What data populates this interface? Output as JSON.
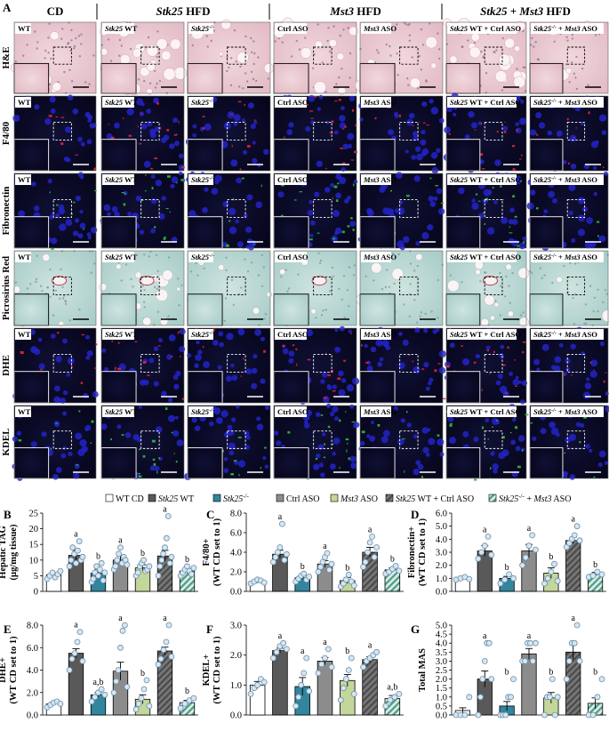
{
  "panel_letters": [
    "A",
    "B",
    "C",
    "D",
    "E",
    "F",
    "G"
  ],
  "group_headers": [
    {
      "parts": [
        {
          "t": "CD",
          "i": false
        }
      ]
    },
    {
      "parts": [
        {
          "t": "Stk25",
          "i": true
        },
        {
          "t": " HFD",
          "i": false
        }
      ]
    },
    {
      "parts": [
        {
          "t": "Mst3",
          "i": true
        },
        {
          "t": " HFD",
          "i": false
        }
      ]
    },
    {
      "parts": [
        {
          "t": "Stk25",
          "i": true
        },
        {
          "t": " + ",
          "i": false
        },
        {
          "t": "Mst3",
          "i": true
        },
        {
          "t": " HFD",
          "i": false
        }
      ]
    }
  ],
  "row_labels": [
    "H&E",
    "F4/80",
    "Fibronectin",
    "Picrosirius Red",
    "DHE",
    "KDEL"
  ],
  "row_styles": [
    "he",
    "fluor-red",
    "fluor-green",
    "psr",
    "fluor-red",
    "fluor-green"
  ],
  "column_labels": [
    [
      {
        "t": "WT",
        "i": false
      }
    ],
    [
      {
        "t": "Stk25",
        "i": true
      },
      {
        "t": " WT",
        "i": false
      }
    ],
    [
      {
        "t": "Stk25",
        "i": true
      },
      {
        "t": "-/-",
        "i": false,
        "sup": true
      }
    ],
    [
      {
        "t": "Ctrl ASO",
        "i": false
      }
    ],
    [
      {
        "t": "Mst3",
        "i": true
      },
      {
        "t": " ASO",
        "i": false
      }
    ],
    [
      {
        "t": "Stk25",
        "i": true
      },
      {
        "t": " WT + Ctrl ASO",
        "i": false
      }
    ],
    [
      {
        "t": "Stk25",
        "i": true
      },
      {
        "t": "-/-",
        "i": false,
        "sup": true
      },
      {
        "t": " + ",
        "i": false
      },
      {
        "t": "Mst3",
        "i": true
      },
      {
        "t": " ASO",
        "i": false
      }
    ]
  ],
  "legend": [
    {
      "parts": [
        {
          "t": "WT CD",
          "i": false
        }
      ],
      "fill": "#ffffff",
      "hatch": false
    },
    {
      "parts": [
        {
          "t": "Stk25",
          "i": true
        },
        {
          "t": " WT",
          "i": false
        }
      ],
      "fill": "#595959",
      "hatch": false
    },
    {
      "parts": [
        {
          "t": "Stk25",
          "i": true
        },
        {
          "t": "-/-",
          "i": false,
          "sup": true
        }
      ],
      "fill": "#31859c",
      "hatch": false
    },
    {
      "parts": [
        {
          "t": "Ctrl ASO",
          "i": false
        }
      ],
      "fill": "#8c8c8c",
      "hatch": false
    },
    {
      "parts": [
        {
          "t": "Mst3",
          "i": true
        },
        {
          "t": " ASO",
          "i": false
        }
      ],
      "fill": "#c3d69b",
      "hatch": false
    },
    {
      "parts": [
        {
          "t": "Stk25",
          "i": true
        },
        {
          "t": " WT + Ctrl ASO",
          "i": false
        }
      ],
      "fill": "#6f6f6f",
      "hatch": "#4a4a4a"
    },
    {
      "parts": [
        {
          "t": "Stk25",
          "i": true
        },
        {
          "t": "-/-",
          "i": false,
          "sup": true
        },
        {
          "t": " + ",
          "i": false
        },
        {
          "t": "Mst3",
          "i": true
        },
        {
          "t": " ASO",
          "i": false
        }
      ],
      "fill": "#cfe5e6",
      "hatch": "#4f9b7e"
    }
  ],
  "colors": {
    "bars": [
      "#ffffff",
      "#595959",
      "#31859c",
      "#8c8c8c",
      "#c3d69b",
      "#6f6f6f",
      "#cfe5e6"
    ],
    "dot_fill": "#d6e6f2",
    "dot_stroke": "#6a8ea8"
  },
  "chart_data": [
    {
      "panel": "B",
      "type": "bar",
      "ylabel": [
        "Hepatic TAG",
        "(µg/mg tissue)"
      ],
      "ylim": [
        0,
        25
      ],
      "yticks": [
        "0",
        "5",
        "10",
        "15",
        "20",
        "25"
      ],
      "values": [
        5.3,
        11.5,
        5.8,
        10.0,
        7.5,
        11.3,
        6.5
      ],
      "errors": [
        0.6,
        1.6,
        1.3,
        1.3,
        1.0,
        1.8,
        0.8
      ],
      "sig": [
        "",
        "a",
        "b",
        "a",
        "b",
        "a",
        "b"
      ],
      "points": [
        [
          4,
          5,
          6,
          4.5,
          5.5,
          6.5
        ],
        [
          8,
          10,
          14,
          12,
          9,
          13,
          16,
          10,
          11
        ],
        [
          3,
          4,
          6,
          8,
          5,
          7,
          9,
          3.5,
          6
        ],
        [
          7,
          8,
          10,
          12,
          14,
          9,
          11,
          10,
          8.5
        ],
        [
          5,
          6,
          8,
          9,
          10,
          6.5,
          7,
          8
        ],
        [
          5,
          8,
          10,
          12,
          14,
          17,
          24,
          9,
          11
        ],
        [
          5,
          6,
          7,
          8,
          6.5,
          5.5,
          7.5
        ]
      ]
    },
    {
      "panel": "C",
      "type": "bar",
      "ylabel": [
        "F4/80+",
        "(WT CD set to 1)"
      ],
      "ylim": [
        0,
        8
      ],
      "yticks": [
        "0.0",
        "2.0",
        "4.0",
        "6.0",
        "8.0"
      ],
      "values": [
        1.0,
        3.8,
        1.4,
        2.8,
        1.1,
        4.0,
        2.2
      ],
      "errors": [
        0.15,
        0.4,
        0.2,
        0.35,
        0.3,
        0.5,
        0.2
      ],
      "sig": [
        "",
        "a",
        "b",
        "a",
        "b",
        "a",
        "b"
      ],
      "points": [
        [
          0.8,
          1.0,
          1.2,
          1.1,
          0.9
        ],
        [
          3,
          3.5,
          4,
          4.5,
          6.9,
          3.2,
          3.8
        ],
        [
          1.0,
          1.3,
          1.6,
          1.8,
          1.2,
          1.5
        ],
        [
          2,
          2.5,
          3,
          3.5,
          3.9,
          2.2,
          2.8
        ],
        [
          0.5,
          0.8,
          1.2,
          1.7,
          1.0,
          0.6
        ],
        [
          2.5,
          3,
          4,
          5,
          5.6,
          3.5,
          4.5
        ],
        [
          1.8,
          2.0,
          2.3,
          2.6,
          2.1
        ]
      ]
    },
    {
      "panel": "D",
      "type": "bar",
      "ylabel": [
        "Fibronectin+",
        "(WT CD set to 1)"
      ],
      "ylim": [
        0,
        6
      ],
      "yticks": [
        "0.0",
        "1.0",
        "2.0",
        "3.0",
        "4.0",
        "5.0",
        "6.0"
      ],
      "values": [
        1.0,
        3.1,
        1.0,
        3.1,
        1.4,
        3.9,
        1.3
      ],
      "errors": [
        0.1,
        0.4,
        0.15,
        0.5,
        0.4,
        0.25,
        0.15
      ],
      "sig": [
        "",
        "a",
        "b",
        "a",
        "b",
        "a",
        "b"
      ],
      "points": [
        [
          0.9,
          1.0,
          1.1,
          0.95
        ],
        [
          2.5,
          3,
          3.5,
          4.2,
          2.8
        ],
        [
          0.6,
          0.9,
          1.3,
          1.0
        ],
        [
          2,
          2.6,
          3.5,
          4.3,
          3.2
        ],
        [
          0.6,
          1,
          1.5,
          2.1,
          0.8
        ],
        [
          3.4,
          3.7,
          4,
          4.3,
          5,
          3.9
        ],
        [
          1.1,
          1.2,
          1.5,
          1.3
        ]
      ]
    },
    {
      "panel": "E",
      "type": "bar",
      "ylabel": [
        "DHE+",
        "(WT CD set to 1)"
      ],
      "ylim": [
        0,
        8
      ],
      "yticks": [
        "0.0",
        "2.0",
        "4.0",
        "6.0",
        "8.0"
      ],
      "values": [
        1.0,
        5.5,
        1.8,
        3.9,
        1.4,
        5.7,
        1.1
      ],
      "errors": [
        0.15,
        0.4,
        0.2,
        0.8,
        0.4,
        0.35,
        0.2
      ],
      "sig": [
        "",
        "a",
        "a,b",
        "a",
        "b",
        "a",
        "b"
      ],
      "points": [
        [
          0.7,
          0.9,
          1.1,
          1.2,
          1.0
        ],
        [
          4,
          5,
          5.5,
          6.5,
          7.4,
          4.8
        ],
        [
          1.2,
          1.6,
          2,
          2.3,
          1.8
        ],
        [
          2,
          3,
          4,
          6,
          7.5,
          8.3,
          2.5
        ],
        [
          0.5,
          1,
          1.5,
          2.3,
          3.1,
          0.8
        ],
        [
          4.5,
          5,
          5.8,
          6.5,
          8.4,
          5.2
        ],
        [
          0.6,
          1,
          1.3,
          1.5
        ]
      ]
    },
    {
      "panel": "F",
      "type": "bar",
      "ylabel": [
        "KDEL+",
        "(WT CD set to 1)"
      ],
      "ylim": [
        0,
        3
      ],
      "yticks": [
        "0.0",
        "1.0",
        "2.0",
        "3.0"
      ],
      "values": [
        1.0,
        2.15,
        0.95,
        1.8,
        1.15,
        1.85,
        0.55
      ],
      "errors": [
        0.12,
        0.08,
        0.3,
        0.12,
        0.2,
        0.1,
        0.1
      ],
      "sig": [
        "",
        "a",
        "a",
        "a",
        "b",
        "a",
        "a,b"
      ],
      "points": [
        [
          0.7,
          0.9,
          1.0,
          1.2,
          1.1
        ],
        [
          1.9,
          2.1,
          2.3,
          2.4,
          2.2
        ],
        [
          0.3,
          0.6,
          1,
          1.4,
          1.9,
          0.8
        ],
        [
          1.4,
          1.7,
          1.9,
          2.2,
          1.6
        ],
        [
          0.5,
          0.9,
          1.2,
          1.5,
          1.9,
          0.7
        ],
        [
          1.6,
          1.8,
          1.9,
          2.0,
          2.1
        ],
        [
          0.3,
          0.5,
          0.6,
          0.7
        ]
      ]
    },
    {
      "panel": "G",
      "type": "bar",
      "ylabel": [
        "Total MAS"
      ],
      "ylim": [
        0,
        5
      ],
      "yticks": [
        "0.0",
        "0.5",
        "1.0",
        "1.5",
        "2.0",
        "2.5",
        "3.0",
        "3.5",
        "4.0",
        "4.5",
        "5.0"
      ],
      "values": [
        0.25,
        2.0,
        0.5,
        3.4,
        0.95,
        3.5,
        0.65
      ],
      "errors": [
        0.15,
        0.45,
        0.25,
        0.3,
        0.3,
        0.4,
        0.3
      ],
      "sig": [
        "",
        "a",
        "b",
        "a",
        "b",
        "a",
        "b"
      ],
      "points": [
        [
          0,
          0,
          0,
          1
        ],
        [
          0,
          1,
          2,
          3,
          4,
          4,
          2
        ],
        [
          0,
          0,
          0,
          1,
          1,
          2
        ],
        [
          3,
          3,
          4,
          4,
          3,
          4
        ],
        [
          0,
          1,
          1,
          2,
          0,
          1
        ],
        [
          2,
          3,
          4,
          4,
          5,
          3
        ],
        [
          0,
          0,
          1,
          2
        ]
      ]
    }
  ]
}
